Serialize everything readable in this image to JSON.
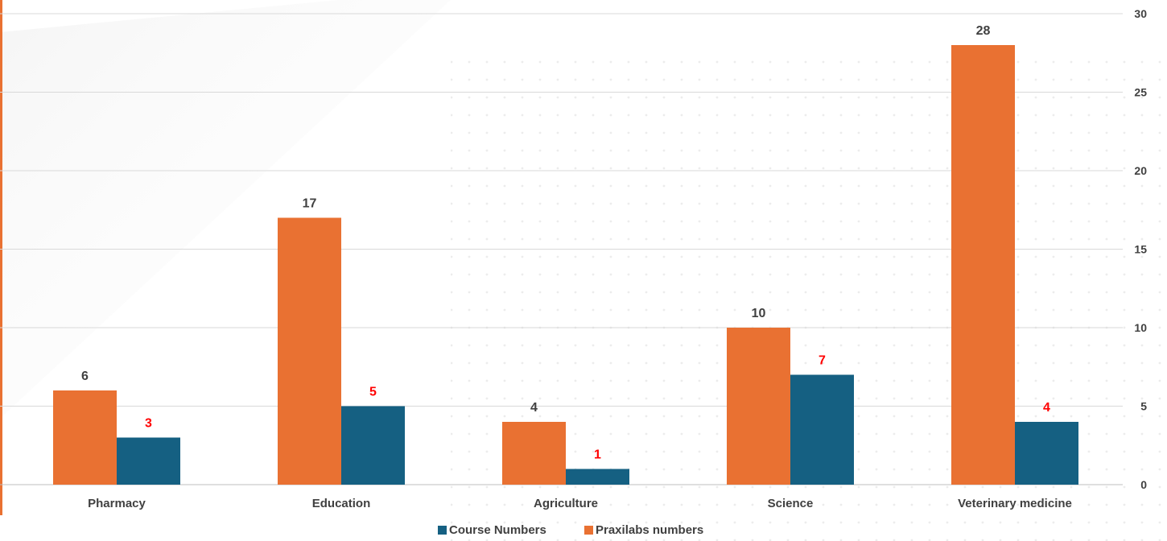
{
  "chart_data": {
    "type": "bar",
    "categories": [
      "Pharmacy",
      "Education",
      "Agriculture",
      "Science",
      "Veterinary medicine"
    ],
    "series": [
      {
        "name": "Praxilabs numbers",
        "values": [
          6,
          17,
          4,
          10,
          28
        ],
        "color": "#E97132",
        "label_color": "#404040"
      },
      {
        "name": "Course Numbers",
        "values": [
          3,
          5,
          1,
          7,
          4
        ],
        "color": "#156082",
        "label_color": "#FF0000"
      }
    ],
    "legend_order": [
      "Course Numbers",
      "Praxilabs numbers"
    ],
    "title": "",
    "xlabel": "",
    "ylabel": "",
    "ylim": [
      0,
      30
    ],
    "yticks": [
      0,
      5,
      10,
      15,
      20,
      25,
      30
    ],
    "grid": true,
    "y_axis_side": "right",
    "legend_position": "bottom-center",
    "gridline_color": "#D9D9D9",
    "accent_line_color": "#E97132"
  }
}
